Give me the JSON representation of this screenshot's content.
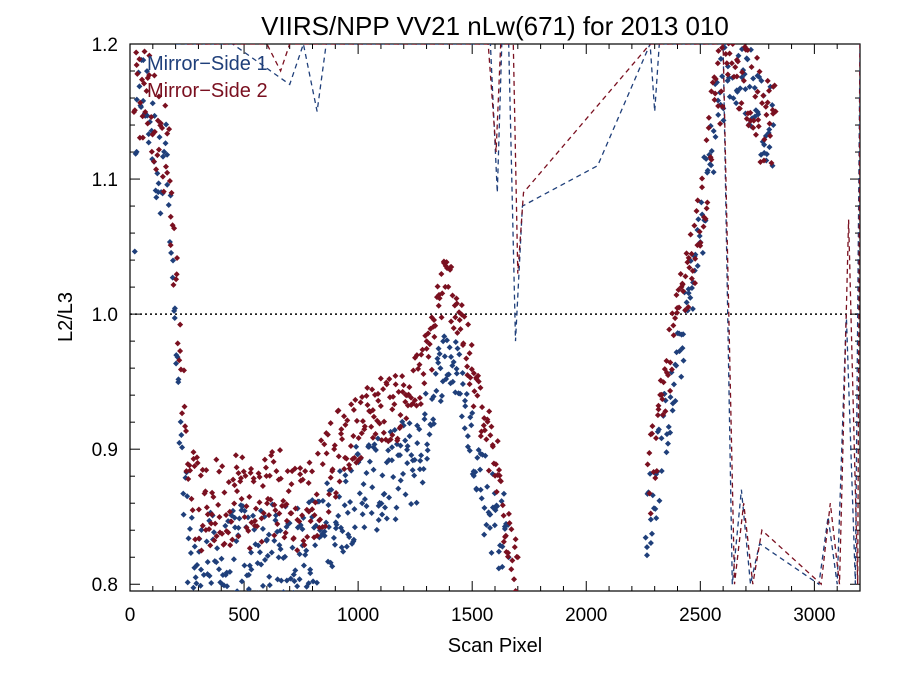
{
  "chart_data": {
    "type": "scatter",
    "title": "VIIRS/NPP VV21 nLw(671) for 2013 010",
    "xlabel": "Scan Pixel",
    "ylabel": "L2/L3",
    "xlim": [
      0,
      3200
    ],
    "ylim": [
      0.795,
      1.2
    ],
    "x_ticks": [
      0,
      500,
      1000,
      1500,
      2000,
      2500,
      3000
    ],
    "y_ticks": [
      0.8,
      0.9,
      1.0,
      1.1,
      1.2
    ],
    "x_tick_labels": [
      "0",
      "500",
      "1000",
      "1500",
      "2000",
      "2500",
      "3000"
    ],
    "y_tick_labels": [
      "0.8",
      "0.9",
      "1.0",
      "1.1",
      "1.2"
    ],
    "reference_line": {
      "y": 1.0,
      "style": "dotted"
    },
    "legend_position": "top-left",
    "series": [
      {
        "name": "Mirror−Side 1",
        "color": "#1f3f7a",
        "marker": "diamond",
        "points": [
          [
            20,
            1.06
          ],
          [
            40,
            1.18
          ],
          [
            60,
            1.16
          ],
          [
            80,
            1.15
          ],
          [
            100,
            1.13
          ],
          [
            130,
            1.1
          ],
          [
            150,
            1.14
          ],
          [
            170,
            1.08
          ],
          [
            190,
            1.02
          ],
          [
            200,
            0.97
          ],
          [
            215,
            0.93
          ],
          [
            230,
            0.88
          ],
          [
            250,
            0.84
          ],
          [
            270,
            0.82
          ],
          [
            300,
            0.81
          ],
          [
            350,
            0.82
          ],
          [
            400,
            0.81
          ],
          [
            450,
            0.82
          ],
          [
            500,
            0.83
          ],
          [
            550,
            0.82
          ],
          [
            600,
            0.82
          ],
          [
            650,
            0.83
          ],
          [
            700,
            0.82
          ],
          [
            750,
            0.83
          ],
          [
            800,
            0.83
          ],
          [
            850,
            0.84
          ],
          [
            900,
            0.85
          ],
          [
            950,
            0.86
          ],
          [
            1000,
            0.87
          ],
          [
            1050,
            0.88
          ],
          [
            1100,
            0.87
          ],
          [
            1150,
            0.88
          ],
          [
            1200,
            0.89
          ],
          [
            1250,
            0.89
          ],
          [
            1300,
            0.91
          ],
          [
            1330,
            0.94
          ],
          [
            1360,
            0.96
          ],
          [
            1390,
            0.97
          ],
          [
            1420,
            0.96
          ],
          [
            1450,
            0.95
          ],
          [
            1480,
            0.92
          ],
          [
            1510,
            0.9
          ],
          [
            1540,
            0.88
          ],
          [
            1570,
            0.86
          ],
          [
            1600,
            0.85
          ],
          [
            1630,
            0.84
          ],
          [
            1660,
            0.82
          ],
          [
            2260,
            0.84
          ],
          [
            2290,
            0.86
          ],
          [
            2320,
            0.89
          ],
          [
            2350,
            0.92
          ],
          [
            2380,
            0.94
          ],
          [
            2410,
            0.97
          ],
          [
            2440,
            1.0
          ],
          [
            2470,
            1.03
          ],
          [
            2500,
            1.06
          ],
          [
            2530,
            1.1
          ],
          [
            2560,
            1.14
          ],
          [
            2600,
            1.17
          ],
          [
            2640,
            1.19
          ],
          [
            2680,
            1.18
          ],
          [
            2720,
            1.17
          ],
          [
            2760,
            1.15
          ],
          [
            2790,
            1.13
          ],
          [
            2820,
            1.14
          ]
        ],
        "dashed_trace": [
          [
            200,
            1.2
          ],
          [
            300,
            1.2
          ],
          [
            450,
            1.2
          ],
          [
            700,
            1.17
          ],
          [
            760,
            1.2
          ],
          [
            820,
            1.15
          ],
          [
            860,
            1.2
          ],
          [
            1580,
            1.2
          ],
          [
            1610,
            1.09
          ],
          [
            1630,
            1.2
          ],
          [
            1660,
            1.2
          ],
          [
            1690,
            0.98
          ],
          [
            1720,
            1.08
          ],
          [
            2050,
            1.11
          ],
          [
            2280,
            1.2
          ],
          [
            2300,
            1.15
          ],
          [
            2320,
            1.2
          ],
          [
            2600,
            1.2
          ],
          [
            2640,
            0.8
          ],
          [
            2680,
            0.87
          ],
          [
            2720,
            0.8
          ],
          [
            2760,
            0.83
          ],
          [
            3020,
            0.8
          ],
          [
            3060,
            0.85
          ],
          [
            3100,
            0.8
          ],
          [
            3140,
            1.0
          ],
          [
            3180,
            0.8
          ],
          [
            3200,
            1.2
          ]
        ]
      },
      {
        "name": "Mirror−Side 2",
        "color": "#7a1020",
        "marker": "diamond",
        "points": [
          [
            20,
            1.18
          ],
          [
            50,
            1.16
          ],
          [
            80,
            1.17
          ],
          [
            110,
            1.14
          ],
          [
            140,
            1.12
          ],
          [
            165,
            1.13
          ],
          [
            185,
            1.07
          ],
          [
            200,
            1.04
          ],
          [
            215,
            0.99
          ],
          [
            230,
            0.95
          ],
          [
            250,
            0.9
          ],
          [
            280,
            0.87
          ],
          [
            320,
            0.85
          ],
          [
            370,
            0.86
          ],
          [
            420,
            0.86
          ],
          [
            470,
            0.87
          ],
          [
            520,
            0.86
          ],
          [
            570,
            0.86
          ],
          [
            620,
            0.87
          ],
          [
            670,
            0.87
          ],
          [
            720,
            0.86
          ],
          [
            770,
            0.86
          ],
          [
            820,
            0.87
          ],
          [
            870,
            0.88
          ],
          [
            920,
            0.9
          ],
          [
            970,
            0.91
          ],
          [
            1020,
            0.92
          ],
          [
            1070,
            0.93
          ],
          [
            1120,
            0.93
          ],
          [
            1170,
            0.93
          ],
          [
            1220,
            0.94
          ],
          [
            1270,
            0.95
          ],
          [
            1310,
            0.97
          ],
          [
            1340,
            1.0
          ],
          [
            1370,
            1.02
          ],
          [
            1400,
            1.02
          ],
          [
            1430,
            1.01
          ],
          [
            1460,
            0.99
          ],
          [
            1490,
            0.96
          ],
          [
            1520,
            0.94
          ],
          [
            1550,
            0.92
          ],
          [
            1580,
            0.9
          ],
          [
            1610,
            0.88
          ],
          [
            1640,
            0.86
          ],
          [
            1670,
            0.84
          ],
          [
            1700,
            0.82
          ],
          [
            2270,
            0.87
          ],
          [
            2300,
            0.9
          ],
          [
            2330,
            0.93
          ],
          [
            2360,
            0.96
          ],
          [
            2390,
            0.99
          ],
          [
            2420,
            1.01
          ],
          [
            2450,
            1.03
          ],
          [
            2480,
            1.05
          ],
          [
            2510,
            1.08
          ],
          [
            2540,
            1.12
          ],
          [
            2570,
            1.16
          ],
          [
            2610,
            1.19
          ],
          [
            2650,
            1.19
          ],
          [
            2690,
            1.18
          ],
          [
            2730,
            1.17
          ],
          [
            2770,
            1.14
          ],
          [
            2800,
            1.14
          ],
          [
            2830,
            1.15
          ]
        ],
        "dashed_trace": [
          [
            250,
            1.2
          ],
          [
            350,
            1.2
          ],
          [
            600,
            1.2
          ],
          [
            660,
            1.18
          ],
          [
            700,
            1.2
          ],
          [
            1570,
            1.2
          ],
          [
            1605,
            1.12
          ],
          [
            1625,
            1.2
          ],
          [
            1680,
            1.2
          ],
          [
            1700,
            1.03
          ],
          [
            1725,
            1.09
          ],
          [
            2280,
            1.2
          ],
          [
            2600,
            1.2
          ],
          [
            2650,
            0.8
          ],
          [
            2690,
            0.86
          ],
          [
            2730,
            0.8
          ],
          [
            2770,
            0.84
          ],
          [
            3030,
            0.8
          ],
          [
            3070,
            0.86
          ],
          [
            3110,
            0.8
          ],
          [
            3150,
            1.07
          ],
          [
            3190,
            0.8
          ],
          [
            3200,
            1.2
          ]
        ]
      }
    ]
  }
}
